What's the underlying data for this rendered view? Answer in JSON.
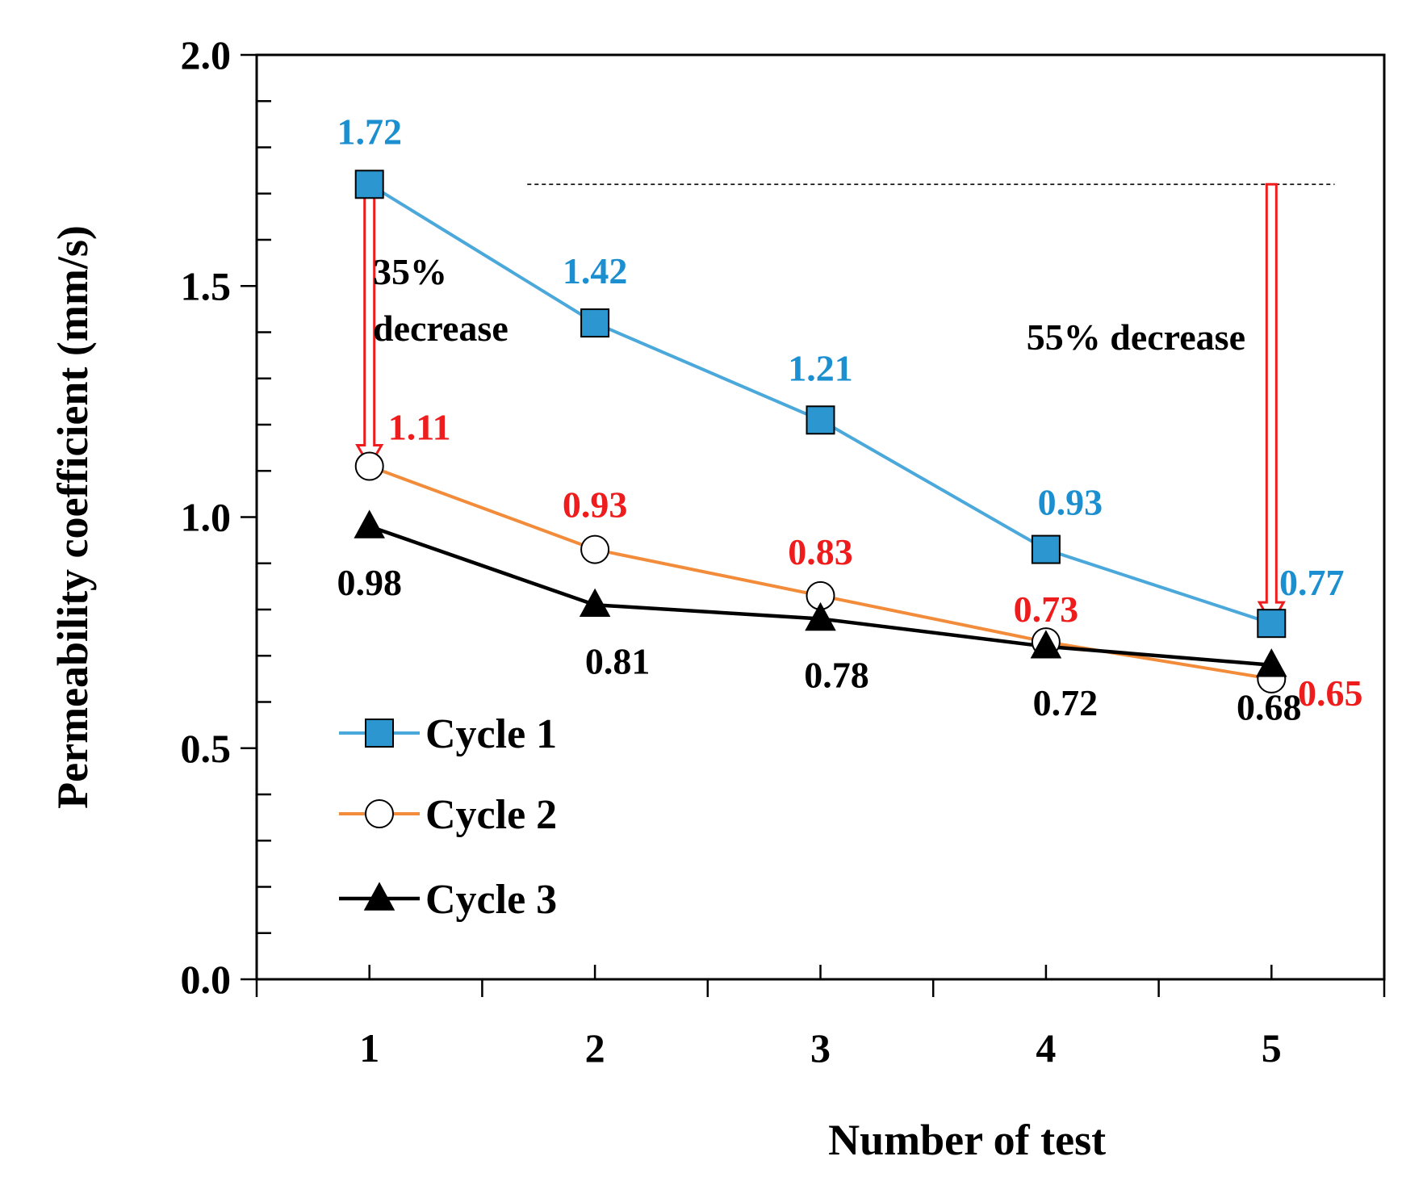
{
  "chart_data": {
    "type": "line",
    "title": "",
    "xlabel": "Number of test",
    "ylabel": "Permeability coefficient (mm/s)",
    "x": [
      1,
      2,
      3,
      4,
      5
    ],
    "x_tick_labels": [
      "1",
      "2",
      "3",
      "4",
      "5"
    ],
    "xlim": [
      0.5,
      5.5
    ],
    "ylim": [
      0.0,
      2.0
    ],
    "y_tick_labels": [
      "0.0",
      "0.5",
      "1.0",
      "1.5",
      "2.0"
    ],
    "y_ticks": [
      0.0,
      0.5,
      1.0,
      1.5,
      2.0
    ],
    "grid": false,
    "legend_position": "bottom-left",
    "series": [
      {
        "name": "Cycle 1",
        "values": [
          1.72,
          1.42,
          1.21,
          0.93,
          0.77
        ],
        "labels": [
          "1.72",
          "1.42",
          "1.21",
          "0.93",
          "0.77"
        ],
        "line_color": "#4aa8db",
        "marker": "square",
        "marker_fill": "#2b96d0",
        "label_color": "#1b8fcf"
      },
      {
        "name": "Cycle 2",
        "values": [
          1.11,
          0.93,
          0.83,
          0.73,
          0.65
        ],
        "labels": [
          "1.11",
          "0.93",
          "0.83",
          "0.73",
          "0.65"
        ],
        "line_color": "#f28c3a",
        "marker": "circle",
        "marker_fill": "#ffffff",
        "label_color": "#ee1c1c"
      },
      {
        "name": "Cycle 3",
        "values": [
          0.98,
          0.81,
          0.78,
          0.72,
          0.68
        ],
        "labels": [
          "0.98",
          "0.81",
          "0.78",
          "0.72",
          "0.68"
        ],
        "line_color": "#000000",
        "marker": "triangle",
        "marker_fill": "#000000",
        "label_color": "#000000"
      }
    ],
    "annotations": {
      "left_arrow": {
        "text_line1": "35%",
        "text_line2": "decrease",
        "x": 1,
        "from": 1.72,
        "to": 1.11
      },
      "right_arrow": {
        "text": "55% decrease",
        "x": 5,
        "from": 1.72,
        "to": 0.77
      },
      "reference_line_value": 1.72,
      "arrow_color": "#ee1c1c"
    }
  }
}
